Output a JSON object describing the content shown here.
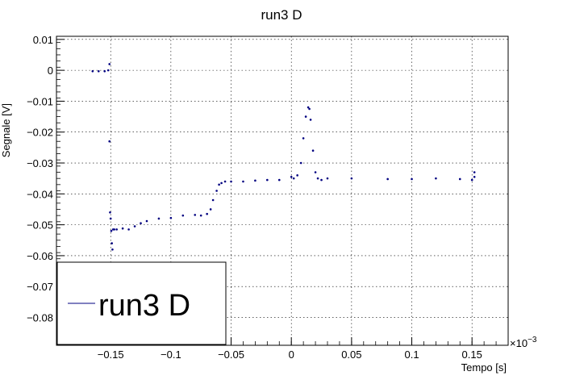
{
  "chart_data": {
    "type": "scatter",
    "title": "run3 D",
    "xlabel": "Tempo [s]",
    "ylabel": "Segnale [V]",
    "x_exponent_label": "×10",
    "x_exponent_power": "−3",
    "xlim": [
      -0.195,
      0.18
    ],
    "ylim": [
      -0.089,
      0.011
    ],
    "x_tick_values": [
      -0.15,
      -0.1,
      -0.05,
      0,
      0.05,
      0.1,
      0.15
    ],
    "x_tick_labels": [
      "−0.15",
      "−0.1",
      "−0.05",
      "0",
      "0.05",
      "0.1",
      "0.15"
    ],
    "y_tick_values": [
      0.01,
      0,
      -0.01,
      -0.02,
      -0.03,
      -0.04,
      -0.05,
      -0.06,
      -0.07,
      -0.08
    ],
    "y_tick_labels": [
      "0.01",
      "0",
      "−0.01",
      "−0.02",
      "−0.03",
      "−0.04",
      "−0.05",
      "−0.06",
      "−0.07",
      "−0.08"
    ],
    "grid": true,
    "legend_position": "bottom-left",
    "series": [
      {
        "name": "run3 D",
        "color": "#000080",
        "x": [
          -0.165,
          -0.16,
          -0.155,
          -0.152,
          -0.151,
          -0.151,
          -0.1505,
          -0.15,
          -0.1495,
          -0.149,
          -0.1485,
          -0.148,
          -0.147,
          -0.145,
          -0.14,
          -0.135,
          -0.13,
          -0.125,
          -0.12,
          -0.11,
          -0.1,
          -0.09,
          -0.08,
          -0.075,
          -0.07,
          -0.067,
          -0.065,
          -0.062,
          -0.06,
          -0.058,
          -0.055,
          -0.05,
          -0.04,
          -0.03,
          -0.02,
          -0.01,
          0,
          0.002,
          0.005,
          0.008,
          0.01,
          0.012,
          0.014,
          0.015,
          0.016,
          0.018,
          0.02,
          0.022,
          0.025,
          0.03,
          0.05,
          0.08,
          0.1,
          0.12,
          0.14,
          0.15,
          0.152,
          0.152
        ],
        "y": [
          -0.0003,
          -0.0003,
          -0.0003,
          0.0,
          0.002,
          -0.023,
          -0.046,
          -0.048,
          -0.052,
          -0.056,
          -0.058,
          -0.0515,
          -0.0515,
          -0.0515,
          -0.0512,
          -0.0515,
          -0.0505,
          -0.0495,
          -0.0488,
          -0.048,
          -0.0478,
          -0.047,
          -0.0468,
          -0.047,
          -0.0465,
          -0.045,
          -0.042,
          -0.039,
          -0.037,
          -0.0365,
          -0.036,
          -0.036,
          -0.036,
          -0.0357,
          -0.0355,
          -0.0355,
          -0.0345,
          -0.035,
          -0.034,
          -0.03,
          -0.022,
          -0.015,
          -0.012,
          -0.0125,
          -0.016,
          -0.026,
          -0.033,
          -0.035,
          -0.0355,
          -0.035,
          -0.035,
          -0.0352,
          -0.0352,
          -0.035,
          -0.0352,
          -0.0355,
          -0.0345,
          -0.033
        ]
      }
    ]
  }
}
